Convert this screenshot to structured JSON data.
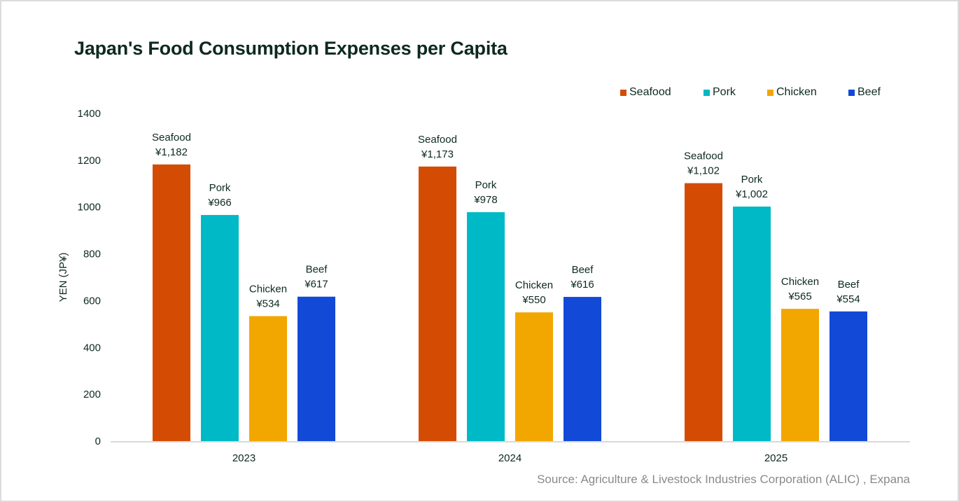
{
  "chart_data": {
    "type": "bar",
    "title": "Japan's Food Consumption Expenses per Capita",
    "xlabel": "",
    "ylabel": "YEN (JP¥)",
    "ylim": [
      0,
      1400
    ],
    "yticks": [
      0,
      200,
      400,
      600,
      800,
      1000,
      1200,
      1400
    ],
    "grid": false,
    "legend_position": "top-right",
    "categories": [
      "2023",
      "2024",
      "2025"
    ],
    "series": [
      {
        "name": "Seafood",
        "color": "#d44b04",
        "values": [
          1182,
          1173,
          1102
        ],
        "labels": [
          "¥1,182",
          "¥1,173",
          "¥1,102"
        ]
      },
      {
        "name": "Pork",
        "color": "#00b9c6",
        "values": [
          966,
          978,
          1002
        ],
        "labels": [
          "¥966",
          "¥978",
          "¥1,002"
        ]
      },
      {
        "name": "Chicken",
        "color": "#f2a600",
        "values": [
          534,
          550,
          565
        ],
        "labels": [
          "¥534",
          "¥550",
          "¥565"
        ]
      },
      {
        "name": "Beef",
        "color": "#1249d6",
        "values": [
          617,
          616,
          554
        ],
        "labels": [
          "¥617",
          "¥616",
          "¥554"
        ]
      }
    ],
    "source": "Source: Agriculture & Livestock Industries Corporation (ALIC) , Expana"
  }
}
